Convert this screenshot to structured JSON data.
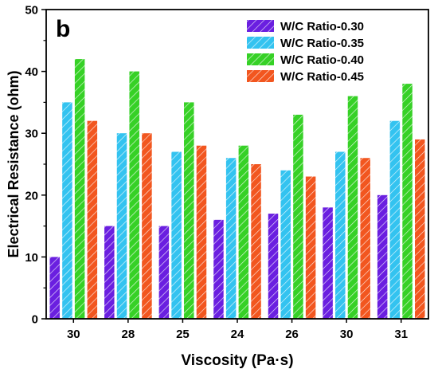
{
  "chart_data": {
    "type": "bar",
    "panel_label": "b",
    "xlabel": "Viscosity (Pa·s)",
    "ylabel": "Electrical Resistance (ohm)",
    "ylim": [
      0,
      50
    ],
    "yticks": [
      0,
      10,
      20,
      30,
      40,
      50
    ],
    "categories": [
      "30",
      "28",
      "25",
      "24",
      "26",
      "30",
      "31"
    ],
    "legend_position": "top-right",
    "grid": false,
    "series": [
      {
        "name": "W/C Ratio-0.30",
        "color": "#6a1fe0",
        "values": [
          10,
          15,
          15,
          16,
          17,
          18,
          20
        ]
      },
      {
        "name": "W/C Ratio-0.35",
        "color": "#33c3f0",
        "values": [
          35,
          30,
          27,
          26,
          24,
          27,
          32
        ]
      },
      {
        "name": "W/C Ratio-0.40",
        "color": "#36d126",
        "values": [
          42,
          40,
          35,
          28,
          33,
          36,
          38
        ]
      },
      {
        "name": "W/C Ratio-0.45",
        "color": "#f2561f",
        "values": [
          32,
          30,
          28,
          25,
          23,
          26,
          29
        ]
      }
    ]
  }
}
